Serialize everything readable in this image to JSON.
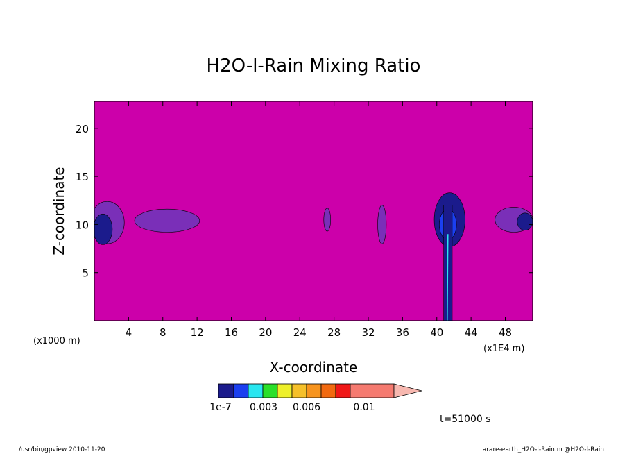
{
  "chart_data": {
    "type": "heatmap",
    "title": "H2O-l-Rain Mixing Ratio",
    "xlabel": "X-coordinate",
    "ylabel": "Z-coordinate",
    "x_unit_left": "(x1000 m)",
    "x_unit_right": "(x1E4 m)",
    "xlim": [
      0,
      51.2
    ],
    "ylim": [
      0,
      22.8
    ],
    "x_ticks": [
      4,
      8,
      12,
      16,
      20,
      24,
      28,
      32,
      36,
      40,
      44,
      48
    ],
    "y_ticks": [
      5,
      10,
      15,
      20
    ],
    "background_color": "#cc00aa",
    "colorbar": {
      "colors": [
        "#1b1b8c",
        "#1b3ff0",
        "#29e6f0",
        "#2ae02a",
        "#eef02a",
        "#f5c02a",
        "#f7941e",
        "#f26a10",
        "#f01818",
        "#f57a70"
      ],
      "extension_color": "#f7b8b0",
      "labels": [
        "1e-7",
        "0.003",
        "0.006",
        "0.01"
      ]
    },
    "time_label": "t=51000 s",
    "regions": [
      {
        "level": "1e-7",
        "color": "#7a2fb8",
        "cx": 1.5,
        "cz": 10.2,
        "rx": 2.0,
        "rz": 2.2
      },
      {
        "level": "1e-7",
        "color": "#1b1b8c",
        "cx": 1.0,
        "cz": 9.5,
        "rx": 1.1,
        "rz": 1.6
      },
      {
        "level": "1e-7",
        "color": "#7a2fb8",
        "cx": 8.5,
        "cz": 10.4,
        "rx": 3.8,
        "rz": 1.2
      },
      {
        "level": "1e-7",
        "color": "#7a2fb8",
        "cx": 27.2,
        "cz": 10.5,
        "rx": 0.4,
        "rz": 1.2
      },
      {
        "level": "1e-7",
        "color": "#7a2fb8",
        "cx": 33.6,
        "cz": 10.0,
        "rx": 0.5,
        "rz": 2.0
      },
      {
        "level": "1e-7",
        "color": "#7a2fb8",
        "cx": 49.0,
        "cz": 10.5,
        "rx": 2.2,
        "rz": 1.3
      },
      {
        "level": "1e-7",
        "color": "#1b1b8c",
        "cx": 50.3,
        "cz": 10.3,
        "rx": 0.9,
        "rz": 0.9
      },
      {
        "level": "1e-7",
        "color": "#1b1b8c",
        "cx": 41.5,
        "cz": 10.5,
        "rx": 1.8,
        "rz": 2.8
      },
      {
        "level": "1e-7",
        "color": "#1b3ff0",
        "cx": 41.3,
        "cz": 10.0,
        "rx": 1.0,
        "rz": 1.6
      }
    ],
    "column": {
      "x": 41.3,
      "z_bottom": 0,
      "z_top": 12.0,
      "half_width": 0.5
    }
  },
  "footer": {
    "left": "/usr/bin/gpview   2010-11-20",
    "right": "arare-earth_H2O-l-Rain.nc@H2O-l-Rain"
  }
}
